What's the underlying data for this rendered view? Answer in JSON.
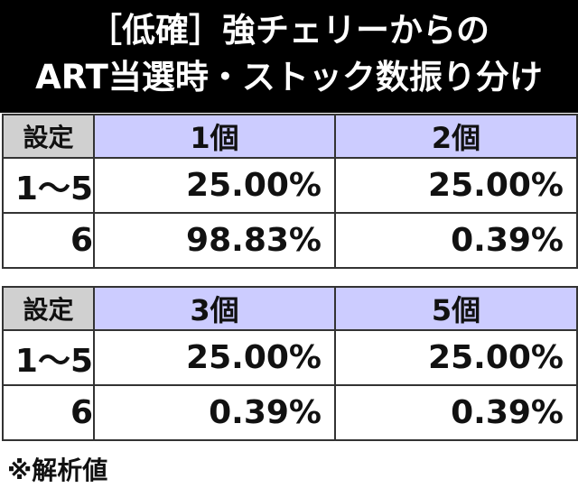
{
  "header": {
    "title_lines": [
      "［低確］強チェリーからの",
      "ART当選時・ストック数振り分け"
    ]
  },
  "tables": [
    {
      "header": [
        "設定",
        "1個",
        "2個"
      ],
      "rows": [
        [
          "1～5",
          "25.00%",
          "25.00%"
        ],
        [
          "6",
          "98.83%",
          "0.39%"
        ]
      ]
    },
    {
      "header": [
        "設定",
        "3個",
        "5個"
      ],
      "rows": [
        [
          "1～5",
          "25.00%",
          "25.00%"
        ],
        [
          "6",
          "0.39%",
          "0.39%"
        ]
      ]
    }
  ],
  "footnote": "※解析値"
}
